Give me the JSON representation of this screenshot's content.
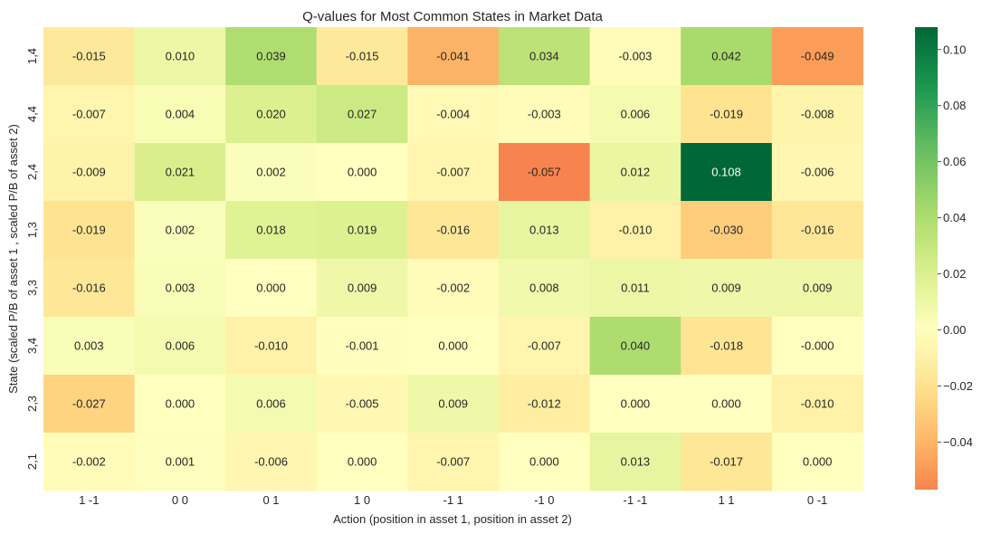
{
  "chart_data": {
    "type": "heatmap",
    "title": "Q-values for Most Common States in Market Data",
    "xlabel": "Action (position in asset 1, position in asset 2)",
    "ylabel": "State (scaled P/B of asset 1 , scaled P/B of asset 2)",
    "x_categories": [
      "1 -1",
      "0 0",
      "0 1",
      "1 0",
      "-1 1",
      "-1 0",
      "-1 -1",
      "1 1",
      "0 -1"
    ],
    "y_categories": [
      "1,4",
      "4,4",
      "2,4",
      "1,3",
      "3,3",
      "3,4",
      "2,3",
      "2,1"
    ],
    "values": [
      [
        -0.015,
        0.01,
        0.039,
        -0.015,
        -0.041,
        0.034,
        -0.003,
        0.042,
        -0.049
      ],
      [
        -0.007,
        0.004,
        0.02,
        0.027,
        -0.004,
        -0.003,
        0.006,
        -0.019,
        -0.008
      ],
      [
        -0.009,
        0.021,
        0.002,
        0.0,
        -0.007,
        -0.057,
        0.012,
        0.108,
        -0.006
      ],
      [
        -0.019,
        0.002,
        0.018,
        0.019,
        -0.016,
        0.013,
        -0.01,
        -0.03,
        -0.016
      ],
      [
        -0.016,
        0.003,
        0.0,
        0.009,
        -0.002,
        0.008,
        0.011,
        0.009,
        0.009
      ],
      [
        0.003,
        0.006,
        -0.01,
        -0.001,
        0.0,
        -0.007,
        0.04,
        -0.018,
        -0.0
      ],
      [
        -0.027,
        0.0,
        0.006,
        -0.005,
        0.009,
        -0.012,
        0.0,
        0.0,
        -0.01
      ],
      [
        -0.002,
        0.001,
        -0.006,
        0.0,
        -0.007,
        0.0,
        0.013,
        -0.017,
        0.0
      ]
    ],
    "labels": [
      [
        "-0.015",
        "0.010",
        "0.039",
        "-0.015",
        "-0.041",
        "0.034",
        "-0.003",
        "0.042",
        "-0.049"
      ],
      [
        "-0.007",
        "0.004",
        "0.020",
        "0.027",
        "-0.004",
        "-0.003",
        "0.006",
        "-0.019",
        "-0.008"
      ],
      [
        "-0.009",
        "0.021",
        "0.002",
        "0.000",
        "-0.007",
        "-0.057",
        "0.012",
        "0.108",
        "-0.006"
      ],
      [
        "-0.019",
        "0.002",
        "0.018",
        "0.019",
        "-0.016",
        "0.013",
        "-0.010",
        "-0.030",
        "-0.016"
      ],
      [
        "-0.016",
        "0.003",
        "0.000",
        "0.009",
        "-0.002",
        "0.008",
        "0.011",
        "0.009",
        "0.009"
      ],
      [
        "0.003",
        "0.006",
        "-0.010",
        "-0.001",
        "0.000",
        "-0.007",
        "0.040",
        "-0.018",
        "-0.000"
      ],
      [
        "-0.027",
        "0.000",
        "0.006",
        "-0.005",
        "0.009",
        "-0.012",
        "0.000",
        "0.000",
        "-0.010"
      ],
      [
        "-0.002",
        "0.001",
        "-0.006",
        "0.000",
        "-0.007",
        "0.000",
        "0.013",
        "-0.017",
        "0.000"
      ]
    ],
    "colormap": "RdYlGn",
    "center": 0,
    "vmin": -0.057,
    "vmax": 0.108,
    "colorbar_ticks": [
      0.1,
      0.08,
      0.06,
      0.04,
      0.02,
      0.0,
      -0.02,
      -0.04
    ],
    "colorbar_tick_labels": [
      "0.10",
      "0.08",
      "0.06",
      "0.04",
      "0.02",
      "0.00",
      "−0.02",
      "−0.04"
    ]
  }
}
